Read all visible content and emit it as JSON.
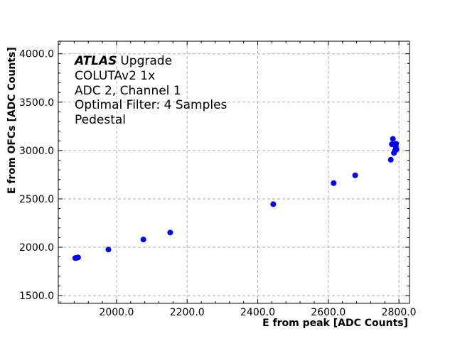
{
  "chart_data": {
    "type": "scatter",
    "xlabel": "E from peak [ADC Counts]",
    "ylabel": "E from OFCs [ADC Counts]",
    "xlim": [
      1835,
      2830
    ],
    "ylim": [
      1420,
      4130
    ],
    "xticks": [
      2000.0,
      2200.0,
      2400.0,
      2600.0,
      2800.0
    ],
    "xtick_labels": [
      "2000.0",
      "2200.0",
      "2400.0",
      "2600.0",
      "2800.0"
    ],
    "yticks": [
      1500.0,
      2000.0,
      2500.0,
      3000.0,
      3500.0,
      4000.0
    ],
    "ytick_labels": [
      "1500.0",
      "2000.0",
      "2500.0",
      "3000.0",
      "3500.0",
      "4000.0"
    ],
    "grid": true,
    "marker_color": "#0000ff",
    "x": [
      1883,
      1886,
      1891,
      1977,
      2076,
      2152,
      2444,
      2615,
      2676,
      2777,
      2780,
      2783,
      2786,
      2789,
      2791,
      2792,
      2793
    ],
    "y": [
      1888,
      1890,
      1895,
      1976,
      2080,
      2152,
      2445,
      2663,
      2743,
      2905,
      3065,
      3120,
      2975,
      3000,
      3040,
      3070,
      3010
    ],
    "annotation": {
      "atlas": "ATLAS",
      "upgrade": "Upgrade",
      "lines": [
        "COLUTAv2 1x",
        "ADC 2, Channel 1",
        "Optimal Filter: 4 Samples",
        "Pedestal"
      ]
    }
  }
}
